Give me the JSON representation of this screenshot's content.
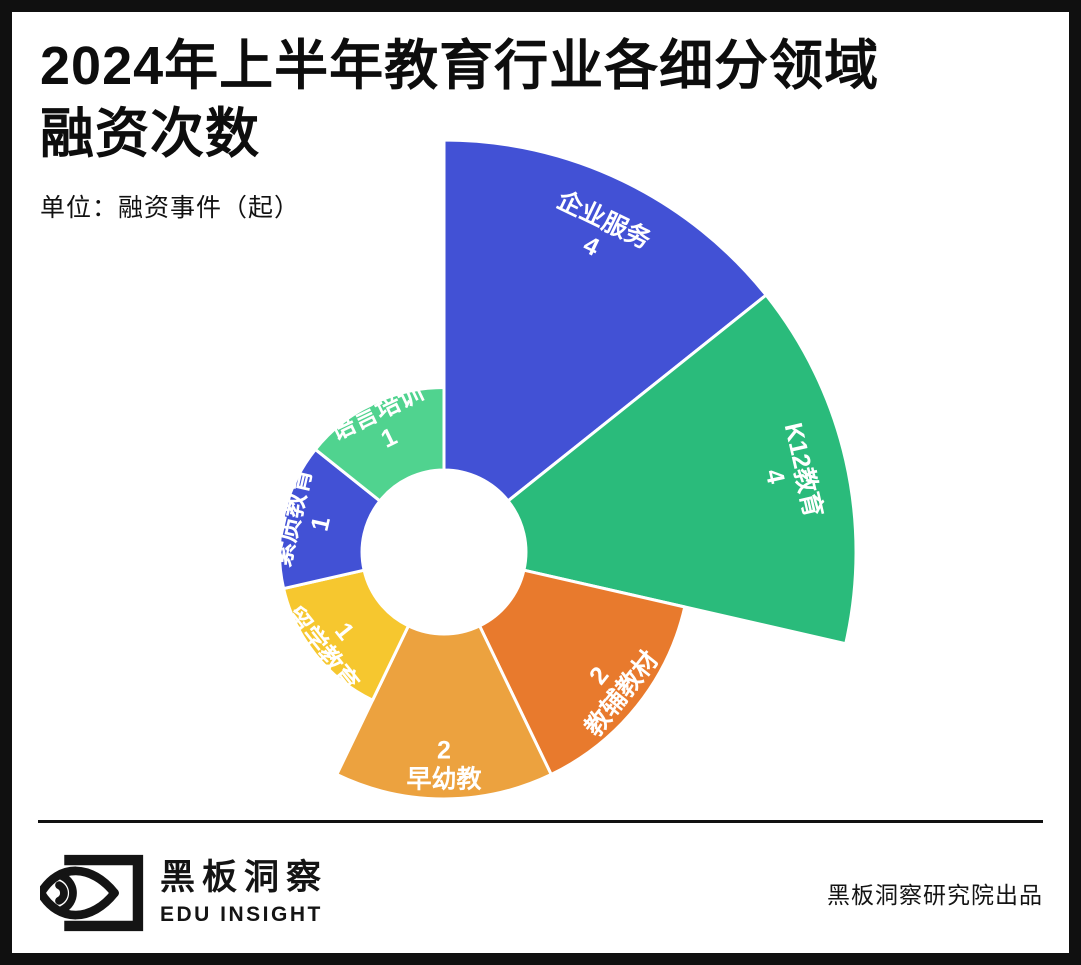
{
  "header": {
    "title_line1": "2024年上半年教育行业各细分领域",
    "title_line2": "融资次数",
    "unit_label": "单位：融资事件（起）"
  },
  "chart_data": {
    "type": "pie",
    "variant": "nightingale-rose",
    "title": "2024年上半年教育行业各细分领域融资次数",
    "unit": "融资事件（起）",
    "categories": [
      "企业服务",
      "K12教育",
      "教辅教材",
      "早幼教",
      "留学教育",
      "素质教育",
      "语言培训"
    ],
    "values": [
      4,
      4,
      2,
      2,
      1,
      1,
      1
    ],
    "colors": [
      "#4251d5",
      "#2abb7b",
      "#e87a2d",
      "#eca23f",
      "#f6c72f",
      "#4251d5",
      "#50d38f"
    ],
    "label_color": "#ffffff",
    "layout": {
      "start_angle_deg": 0,
      "clockwise": true,
      "equal_angles": true,
      "center": [
        432,
        540
      ],
      "inner_radius": 82,
      "max_radius": 412,
      "label_radius_ratio": 0.86,
      "gap_color": "#ffffff",
      "gap_width": 3,
      "legend": "none",
      "grid": "off"
    }
  },
  "footer": {
    "brand_cn": "黑板洞察",
    "brand_en": "EDU INSIGHT",
    "credit": "黑板洞察研究院出品"
  }
}
